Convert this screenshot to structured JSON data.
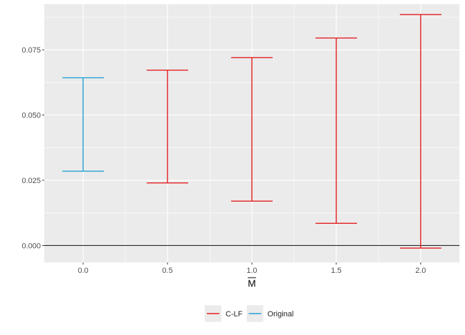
{
  "chart_data": {
    "type": "errorbar",
    "xlabel": "M",
    "ylabel": "",
    "title": "",
    "xlim": [
      -0.23,
      2.23
    ],
    "ylim": [
      -0.0065,
      0.0925
    ],
    "x_ticks": [
      0.0,
      0.5,
      1.0,
      1.5,
      2.0
    ],
    "x_tick_labels": [
      "0.0",
      "0.5",
      "1.0",
      "1.5",
      "2.0"
    ],
    "y_ticks": [
      0.0,
      0.025,
      0.05,
      0.075
    ],
    "y_tick_labels": [
      "0.000",
      "0.025",
      "0.050",
      "0.075"
    ],
    "hline": 0,
    "grid": true,
    "legend_position": "bottom",
    "series": [
      {
        "name": "C-LF",
        "color": "#e41a1c",
        "points": [
          {
            "x": 0.5,
            "low": 0.024,
            "high": 0.0672
          },
          {
            "x": 1.0,
            "low": 0.017,
            "high": 0.072
          },
          {
            "x": 1.5,
            "low": 0.0085,
            "high": 0.0795
          },
          {
            "x": 2.0,
            "low": -0.001,
            "high": 0.0885
          }
        ]
      },
      {
        "name": "Original",
        "color": "#1f9fd5",
        "points": [
          {
            "x": 0.0,
            "low": 0.0285,
            "high": 0.0643
          }
        ]
      }
    ]
  }
}
